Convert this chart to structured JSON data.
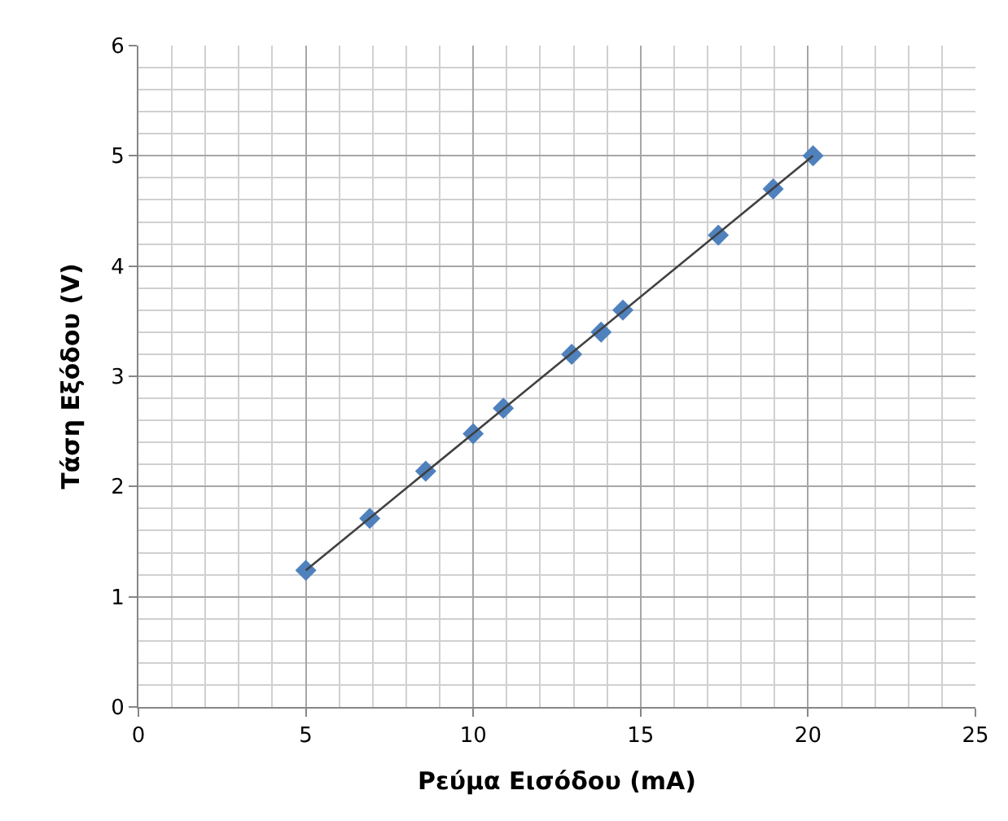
{
  "chart_data": {
    "type": "scatter",
    "xlabel": "Ρεύμα Εισόδου (mA)",
    "ylabel": "Τάση Εξόδου (V)",
    "xlim": [
      0,
      25
    ],
    "xticks": [
      0,
      5,
      10,
      15,
      20,
      25
    ],
    "ylim": [
      0,
      6
    ],
    "yticks": [
      0,
      1,
      2,
      3,
      4,
      5,
      6
    ],
    "grid": true,
    "series": [
      {
        "color": "#4f81bd",
        "marker": "diamond",
        "x": [
          5,
          6.91,
          8.58,
          10.0,
          10.9,
          12.94,
          13.82,
          14.47,
          17.32,
          18.96,
          20.15
        ],
        "values": [
          1.24,
          1.71,
          2.14,
          2.48,
          2.71,
          3.2,
          3.4,
          3.6,
          4.28,
          4.7,
          5.0
        ]
      },
      {
        "type": "line",
        "color": "#404040",
        "marker": "none",
        "x": [
          5,
          20.15
        ],
        "values": [
          1.24,
          5.0
        ]
      }
    ]
  }
}
